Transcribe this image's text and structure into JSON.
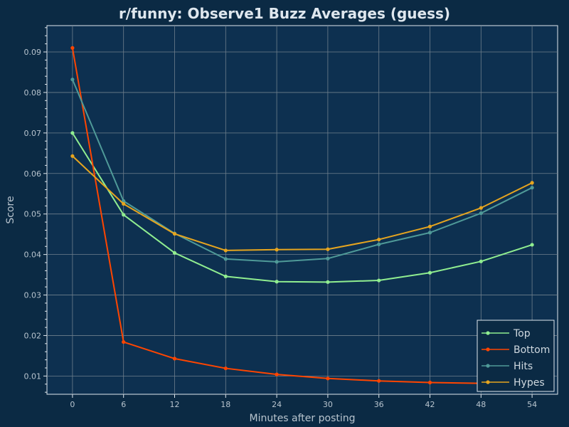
{
  "chart_data": {
    "type": "line",
    "title": "r/funny: Observe1 Buzz Averages (guess)",
    "xlabel": "Minutes after posting",
    "ylabel": "Score",
    "x": [
      0,
      6,
      12,
      18,
      24,
      30,
      36,
      42,
      48,
      54
    ],
    "xlim": [
      -3,
      57
    ],
    "ylim": [
      0.0055,
      0.0965
    ],
    "xticks": [
      "0",
      "6",
      "12",
      "18",
      "24",
      "30",
      "36",
      "42",
      "48",
      "54"
    ],
    "yticks": [
      "0.01",
      "0.02",
      "0.03",
      "0.04",
      "0.05",
      "0.06",
      "0.07",
      "0.08",
      "0.09"
    ],
    "grid": true,
    "legend_position": "bottom-right",
    "series": [
      {
        "name": "Top",
        "color": "#90ee90",
        "values": [
          0.07,
          0.0498,
          0.0404,
          0.0346,
          0.0333,
          0.0332,
          0.0336,
          0.0355,
          0.0383,
          0.0424
        ]
      },
      {
        "name": "Bottom",
        "color": "#ff4500",
        "values": [
          0.091,
          0.0184,
          0.0143,
          0.0119,
          0.0104,
          0.0094,
          0.0088,
          0.0084,
          0.0082,
          0.008
        ]
      },
      {
        "name": "Hits",
        "color": "#4f9a98",
        "values": [
          0.0832,
          0.0532,
          0.0452,
          0.0389,
          0.0382,
          0.039,
          0.0425,
          0.0454,
          0.0502,
          0.0565
        ]
      },
      {
        "name": "Hypes",
        "color": "#e6a51f",
        "values": [
          0.0643,
          0.0525,
          0.0451,
          0.041,
          0.0412,
          0.0413,
          0.0437,
          0.0469,
          0.0515,
          0.0577
        ]
      }
    ]
  }
}
